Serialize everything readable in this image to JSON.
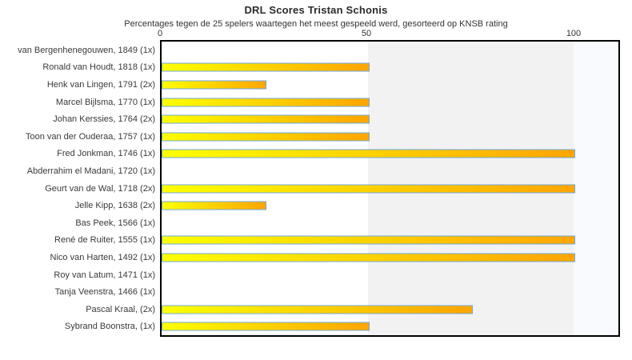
{
  "chart": {
    "title": "DRL Scores Tristan Schonis",
    "subtitle": "Percentages tegen de 25 spelers waartegen het meest gespeeld werd, gesorteerd op KNSB rating",
    "axis_ticks": [
      "0",
      "50",
      "100"
    ]
  },
  "chart_data": {
    "type": "bar",
    "orientation": "horizontal",
    "title": "DRL Scores Tristan Schonis",
    "subtitle": "Percentages tegen de 25 spelers waartegen het meest gespeeld werd, gesorteerd op KNSB rating",
    "xlabel": "",
    "ylabel": "",
    "xlim": [
      0,
      110.8
    ],
    "x_ticks": [
      0,
      50,
      100
    ],
    "grid": false,
    "legend": "none",
    "categories": [
      "van Bergenhenegouwen, 1849 (1x)",
      "Ronald van Houdt, 1818 (1x)",
      "Henk van Lingen, 1791 (2x)",
      "Marcel Bijlsma, 1770 (1x)",
      "Johan Kerssies, 1764 (2x)",
      "Toon van der Ouderaa, 1757 (1x)",
      "Fred Jonkman, 1746 (1x)",
      "Abderrahim el Madani, 1720 (1x)",
      "Geurt van de Wal, 1718 (2x)",
      "Jelle Kipp, 1638 (2x)",
      "Bas Peek, 1566 (1x)",
      "René de Ruiter, 1555 (1x)",
      "Nico van Harten, 1492 (1x)",
      "Roy van Latum, 1471 (1x)",
      "Tanja Veenstra, 1466 (1x)",
      "Pascal Kraal,  (2x)",
      "Sybrand Boonstra,  (1x)"
    ],
    "values": [
      0,
      50,
      25,
      50,
      50,
      50,
      100,
      0,
      100,
      25,
      0,
      100,
      100,
      0,
      0,
      75,
      50
    ],
    "bands": [
      {
        "name": "mid-band",
        "from": 50,
        "to": 100,
        "color": "#f2f2f2"
      },
      {
        "name": "high-band",
        "from": 100,
        "to": 110.8,
        "color": "#f8fafd"
      }
    ],
    "colors": {
      "bar_gradient_start": "#ffff00",
      "bar_gradient_end": "#ffa500",
      "bar_border": "#6fa8dc",
      "plot_border": "#000000",
      "band_mid": "#f2f2f2",
      "band_high": "#f8fafd",
      "text": "#333333"
    }
  }
}
